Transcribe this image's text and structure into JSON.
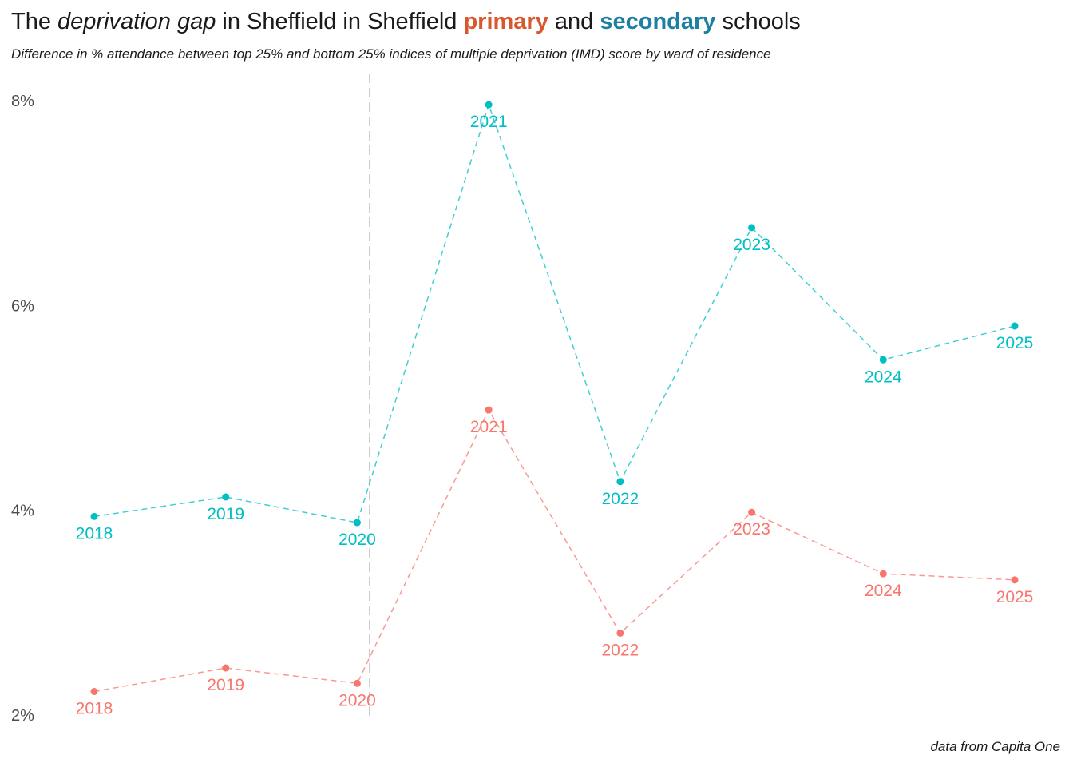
{
  "title": {
    "part1": "The ",
    "part2": "deprivation gap",
    "part3": " in Sheffield in Sheffield ",
    "primary_word": "primary",
    "part4": " and ",
    "secondary_word": "secondary",
    "part5": " schools"
  },
  "subtitle": "Difference in % attendance between top 25% and bottom 25% indices of multiple deprivation (IMD) score by ward of residence",
  "caption": "data from Capita One",
  "colors": {
    "primary": "#F8766D",
    "secondary": "#00BFC4",
    "title_primary": "#D9572F",
    "title_secondary": "#1F7FA0",
    "divider": "#cccccc"
  },
  "chart_data": {
    "type": "line",
    "x": [
      "2018",
      "2019",
      "2020",
      "2021",
      "2022",
      "2023",
      "2024",
      "2025"
    ],
    "ylim": [
      2,
      8
    ],
    "y_ticks": [
      "2%",
      "4%",
      "6%",
      "8%"
    ],
    "y_tick_values": [
      2,
      4,
      6,
      8
    ],
    "grid": false,
    "line_style": "dashed",
    "vertical_reference_between": [
      "2020",
      "2021"
    ],
    "series": [
      {
        "key": "secondary",
        "values": [
          3.94,
          4.13,
          3.88,
          7.96,
          4.28,
          6.76,
          5.47,
          5.8
        ]
      },
      {
        "key": "primary",
        "values": [
          2.23,
          2.46,
          2.31,
          4.98,
          2.8,
          3.98,
          3.38,
          3.32
        ]
      }
    ]
  }
}
